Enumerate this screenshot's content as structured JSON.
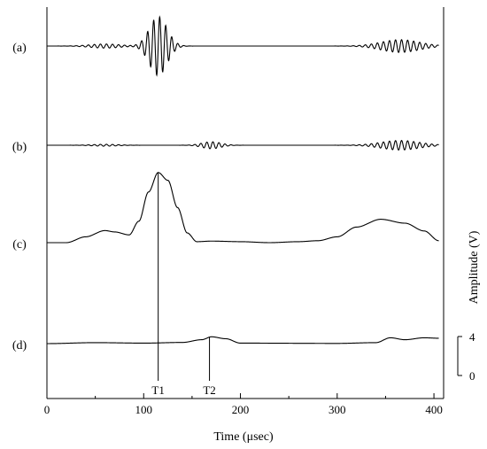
{
  "chart_data": {
    "type": "line",
    "xlabel": "Time (μsec)",
    "ylabel": "Amplitude (V)",
    "xlim": [
      0,
      410
    ],
    "xticks": [
      0,
      100,
      200,
      300,
      400
    ],
    "panels": [
      {
        "label": "(a)",
        "kind": "rf",
        "baseline_v": 0,
        "packets": [
          {
            "center": 115,
            "width": 13,
            "amp": 1.85,
            "freq": 0.16
          },
          {
            "center": 365,
            "width": 28,
            "amp": 0.4,
            "freq": 0.16
          },
          {
            "center": 60,
            "width": 22,
            "amp": 0.13,
            "freq": 0.16
          }
        ]
      },
      {
        "label": "(b)",
        "kind": "rf",
        "baseline_v": 0,
        "packets": [
          {
            "center": 170,
            "width": 14,
            "amp": 0.22,
            "freq": 0.16
          },
          {
            "center": 365,
            "width": 28,
            "amp": 0.3,
            "freq": 0.16
          },
          {
            "center": 60,
            "width": 18,
            "amp": 0.06,
            "freq": 0.16
          }
        ]
      },
      {
        "label": "(c)",
        "kind": "envelope",
        "baseline_v": 0,
        "points": [
          [
            0,
            0
          ],
          [
            20,
            0
          ],
          [
            40,
            0.3
          ],
          [
            60,
            0.62
          ],
          [
            70,
            0.55
          ],
          [
            85,
            0.4
          ],
          [
            95,
            1.1
          ],
          [
            105,
            2.6
          ],
          [
            115,
            3.6
          ],
          [
            125,
            3.2
          ],
          [
            135,
            1.8
          ],
          [
            145,
            0.5
          ],
          [
            155,
            0.05
          ],
          [
            170,
            0.08
          ],
          [
            200,
            0.05
          ],
          [
            230,
            0.0
          ],
          [
            260,
            0.05
          ],
          [
            280,
            0.1
          ],
          [
            300,
            0.3
          ],
          [
            320,
            0.8
          ],
          [
            345,
            1.2
          ],
          [
            370,
            1.0
          ],
          [
            390,
            0.6
          ],
          [
            405,
            0.1
          ]
        ]
      },
      {
        "label": "(d)",
        "kind": "envelope",
        "baseline_v": 0,
        "points": [
          [
            0,
            0
          ],
          [
            50,
            0.1
          ],
          [
            100,
            0.05
          ],
          [
            140,
            0.12
          ],
          [
            160,
            0.4
          ],
          [
            170,
            0.7
          ],
          [
            185,
            0.5
          ],
          [
            200,
            0.05
          ],
          [
            300,
            0.02
          ],
          [
            340,
            0.1
          ],
          [
            355,
            0.6
          ],
          [
            370,
            0.4
          ],
          [
            390,
            0.6
          ],
          [
            405,
            0.55
          ]
        ]
      }
    ],
    "markers": [
      {
        "label": "T1",
        "x": 115,
        "top_panel": 2
      },
      {
        "label": "T2",
        "x": 168,
        "top_panel": 3
      }
    ],
    "scale_bar": {
      "top_label": "4",
      "bottom_label": "0",
      "range_v": [
        0,
        4
      ]
    }
  }
}
